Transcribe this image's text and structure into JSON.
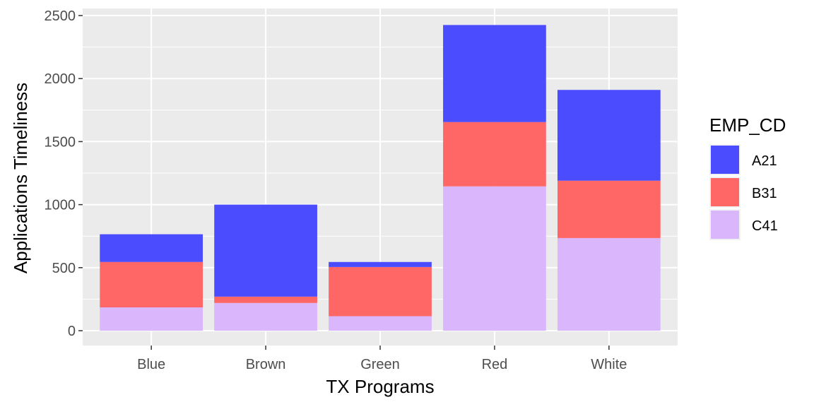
{
  "chart_data": {
    "type": "bar",
    "stacked": true,
    "title": "",
    "xlabel": "TX Programs",
    "ylabel": "Applications Timeliness",
    "categories": [
      "Blue",
      "Brown",
      "Green",
      "Red",
      "White"
    ],
    "ylim": [
      0,
      2500
    ],
    "yticks": [
      0,
      500,
      1000,
      1500,
      2000,
      2500
    ],
    "ytick_labels": [
      "0",
      "500",
      "1000",
      "1500",
      "2000",
      "2500"
    ],
    "grid": true,
    "legend": {
      "title": "EMP_CD",
      "position": "right"
    },
    "series": [
      {
        "name": "C41",
        "color": "#DAB6FC",
        "values": [
          185,
          220,
          115,
          1145,
          735
        ]
      },
      {
        "name": "B31",
        "color": "#FF6666",
        "values": [
          360,
          50,
          390,
          510,
          455
        ]
      },
      {
        "name": "A21",
        "color": "#4C4CFF",
        "values": [
          220,
          730,
          40,
          770,
          720
        ]
      }
    ],
    "legend_order": [
      "A21",
      "B31",
      "C41"
    ],
    "panel_color": "#EBEBEB",
    "grid_color": "#FFFFFF"
  }
}
